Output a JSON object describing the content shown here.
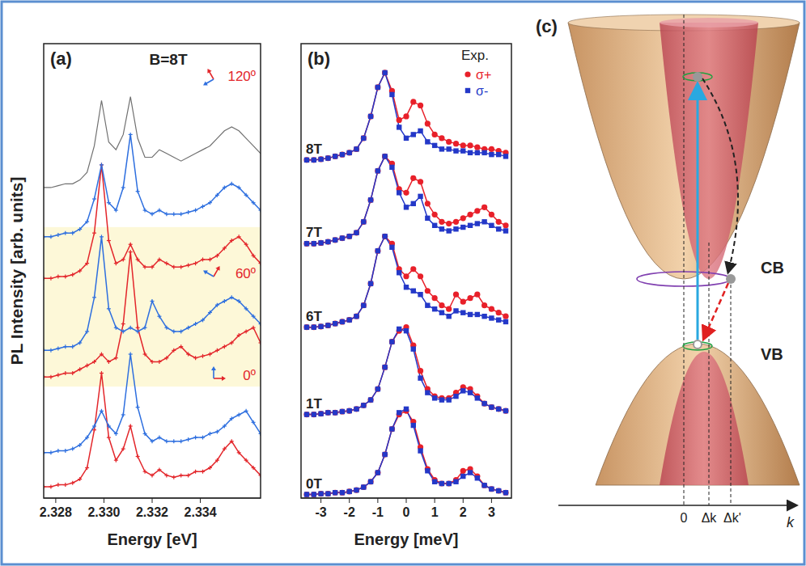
{
  "chart_data": [
    {
      "type": "line",
      "panel": "(a)",
      "annotations": [
        "B=8T"
      ],
      "x_label": "Energy [eV]",
      "y_label": "PL Intensity [arb. units]",
      "x": [
        2.3275,
        2.3278,
        2.3281,
        2.3284,
        2.3287,
        2.329,
        2.3293,
        2.3296,
        2.3299,
        2.3302,
        2.3305,
        2.3308,
        2.3311,
        2.3314,
        2.3317,
        2.332,
        2.3323,
        2.3326,
        2.3329,
        2.3332,
        2.3335,
        2.3338,
        2.3341,
        2.3344,
        2.3347,
        2.335,
        2.3353,
        2.3356,
        2.3359,
        2.3362,
        2.3365
      ],
      "xlim": [
        2.3275,
        2.3365
      ],
      "xticks": [
        {
          "value": 2.328,
          "label": "2.328"
        },
        {
          "value": 2.33,
          "label": "2.330"
        },
        {
          "value": 2.332,
          "label": "2.332"
        },
        {
          "value": 2.334,
          "label": "2.334"
        }
      ],
      "ylim": [
        0,
        12
      ],
      "tick_labels": "x",
      "marker": "plus",
      "groups": [
        {
          "label": "0º",
          "series": [
            {
              "color": "#e3262b",
              "values": [
                0.3,
                0.3,
                0.35,
                0.35,
                0.4,
                0.5,
                0.8,
                1.8,
                3.3,
                1.6,
                1.0,
                1.3,
                1.9,
                1.1,
                0.7,
                0.6,
                0.75,
                0.6,
                0.55,
                0.6,
                0.6,
                0.7,
                0.7,
                0.8,
                1.0,
                1.3,
                1.5,
                1.2,
                1.0,
                0.8,
                0.6
              ]
            },
            {
              "color": "#2e6fdf",
              "values": [
                1.2,
                1.2,
                1.25,
                1.25,
                1.3,
                1.4,
                1.6,
                1.9,
                2.3,
                1.9,
                1.7,
                2.2,
                3.8,
                2.4,
                1.7,
                1.5,
                1.6,
                1.5,
                1.5,
                1.5,
                1.55,
                1.6,
                1.6,
                1.7,
                1.75,
                1.9,
                2.1,
                2.2,
                2.3,
                2.0,
                1.7
              ]
            }
          ]
        },
        {
          "label": "60º",
          "series": [
            {
              "color": "#e3262b",
              "values": [
                3.2,
                3.2,
                3.25,
                3.3,
                3.3,
                3.4,
                3.5,
                3.6,
                3.8,
                3.6,
                3.7,
                4.6,
                6.5,
                4.5,
                3.8,
                3.6,
                3.6,
                3.7,
                3.9,
                4.0,
                3.8,
                3.7,
                3.75,
                3.8,
                3.9,
                4.0,
                4.1,
                4.3,
                4.4,
                4.5,
                4.1
              ]
            },
            {
              "color": "#2e6fdf",
              "values": [
                3.9,
                3.9,
                3.95,
                4.0,
                4.0,
                4.1,
                4.4,
                5.3,
                6.9,
                5.0,
                4.5,
                4.4,
                4.5,
                4.4,
                4.5,
                5.2,
                4.8,
                4.5,
                4.4,
                4.4,
                4.5,
                4.6,
                4.7,
                4.9,
                5.1,
                5.2,
                5.3,
                5.2,
                5.0,
                4.8,
                4.6
              ]
            }
          ]
        },
        {
          "label": "120º",
          "series": [
            {
              "color": "#e3262b",
              "values": [
                5.8,
                5.8,
                5.85,
                5.85,
                5.9,
                6.0,
                6.2,
                7.0,
                8.8,
                6.8,
                6.2,
                6.3,
                6.7,
                6.3,
                6.1,
                6.1,
                6.3,
                6.2,
                6.1,
                6.1,
                6.15,
                6.2,
                6.3,
                6.3,
                6.4,
                6.6,
                6.8,
                6.9,
                6.7,
                6.4,
                6.2
              ]
            },
            {
              "color": "#2e6fdf",
              "values": [
                6.9,
                6.9,
                6.95,
                7.0,
                7.0,
                7.1,
                7.3,
                7.9,
                8.8,
                7.8,
                7.6,
                8.2,
                9.6,
                8.1,
                7.6,
                7.5,
                7.6,
                7.5,
                7.5,
                7.5,
                7.55,
                7.6,
                7.7,
                7.8,
                8.0,
                8.2,
                8.3,
                8.2,
                8.0,
                7.8,
                7.6
              ]
            }
          ]
        }
      ],
      "reference": {
        "color": "#707070",
        "marker": "none",
        "values": [
          8.2,
          8.2,
          8.25,
          8.3,
          8.3,
          8.4,
          8.6,
          9.3,
          10.5,
          9.4,
          9.2,
          9.6,
          10.6,
          9.5,
          9.0,
          9.0,
          9.2,
          9.1,
          9.0,
          8.9,
          9.0,
          9.1,
          9.2,
          9.3,
          9.5,
          9.7,
          9.8,
          9.7,
          9.5,
          9.3,
          9.1
        ]
      }
    },
    {
      "type": "line",
      "panel": "(b)",
      "x_label": "Energy [meV]",
      "legend": "upper right",
      "legend_title": "Exp.",
      "x": [
        -3.5,
        -3.25,
        -3,
        -2.75,
        -2.5,
        -2.25,
        -2,
        -1.75,
        -1.5,
        -1.25,
        -1,
        -0.75,
        -0.5,
        -0.25,
        0,
        0.25,
        0.5,
        0.75,
        1,
        1.25,
        1.5,
        1.75,
        2,
        2.25,
        2.5,
        2.75,
        3,
        3.25,
        3.5
      ],
      "xlim": [
        -3.7,
        3.7
      ],
      "xticks": [
        -3,
        -2,
        -1,
        0,
        1,
        2,
        3
      ],
      "ylim": [
        0,
        12.5
      ],
      "tick_labels": "x",
      "groups": [
        {
          "label": "0T",
          "series": [
            {
              "name": "σ+",
              "color": "#e8202a",
              "marker": "circle",
              "values": [
                0.1,
                0.1,
                0.12,
                0.12,
                0.15,
                0.15,
                0.18,
                0.22,
                0.3,
                0.45,
                0.7,
                1.2,
                1.9,
                2.3,
                2.4,
                2.1,
                1.4,
                0.8,
                0.5,
                0.4,
                0.4,
                0.5,
                0.75,
                0.8,
                0.6,
                0.35,
                0.25,
                0.2,
                0.15
              ]
            },
            {
              "name": "σ-",
              "color": "#2438c8",
              "marker": "square",
              "values": [
                0.1,
                0.1,
                0.12,
                0.12,
                0.15,
                0.15,
                0.18,
                0.22,
                0.3,
                0.45,
                0.7,
                1.2,
                1.9,
                2.35,
                2.45,
                2.0,
                1.3,
                0.75,
                0.45,
                0.4,
                0.4,
                0.45,
                0.6,
                0.7,
                0.55,
                0.35,
                0.25,
                0.2,
                0.15
              ]
            }
          ]
        },
        {
          "label": "1T",
          "series": [
            {
              "name": "σ+",
              "color": "#e8202a",
              "marker": "circle",
              "values": [
                2.3,
                2.3,
                2.32,
                2.35,
                2.35,
                2.38,
                2.4,
                2.45,
                2.55,
                2.7,
                3.0,
                3.6,
                4.3,
                4.6,
                4.7,
                4.2,
                3.5,
                3.0,
                2.8,
                2.75,
                2.75,
                2.9,
                3.05,
                3.0,
                2.8,
                2.6,
                2.5,
                2.45,
                2.4
              ]
            },
            {
              "name": "σ-",
              "color": "#2438c8",
              "marker": "square",
              "values": [
                2.3,
                2.3,
                2.32,
                2.35,
                2.35,
                2.38,
                2.4,
                2.45,
                2.55,
                2.7,
                3.0,
                3.6,
                4.3,
                4.65,
                4.6,
                4.1,
                3.3,
                2.9,
                2.75,
                2.7,
                2.7,
                2.8,
                2.95,
                2.9,
                2.75,
                2.6,
                2.5,
                2.45,
                2.4
              ]
            }
          ]
        },
        {
          "label": "6T",
          "series": [
            {
              "name": "σ+",
              "color": "#e8202a",
              "marker": "circle",
              "values": [
                4.7,
                4.7,
                4.72,
                4.75,
                4.8,
                4.85,
                4.9,
                5.0,
                5.3,
                5.9,
                6.8,
                7.2,
                7.0,
                6.3,
                6.1,
                6.3,
                6.1,
                5.7,
                5.5,
                5.3,
                5.2,
                5.6,
                5.4,
                5.5,
                5.6,
                5.3,
                5.2,
                5.1,
                5.0
              ]
            },
            {
              "name": "σ-",
              "color": "#2438c8",
              "marker": "square",
              "values": [
                4.7,
                4.7,
                4.72,
                4.75,
                4.8,
                4.85,
                4.9,
                5.0,
                5.3,
                5.9,
                6.8,
                7.2,
                6.9,
                6.2,
                5.8,
                5.7,
                5.6,
                5.3,
                5.2,
                5.1,
                5.0,
                5.15,
                5.1,
                5.05,
                5.05,
                5.0,
                4.95,
                4.9,
                4.85
              ]
            }
          ]
        },
        {
          "label": "7T",
          "series": [
            {
              "name": "σ+",
              "color": "#e8202a",
              "marker": "circle",
              "values": [
                7.0,
                7.0,
                7.02,
                7.05,
                7.1,
                7.15,
                7.2,
                7.3,
                7.6,
                8.2,
                9.0,
                9.4,
                9.2,
                8.5,
                8.4,
                8.8,
                8.7,
                8.1,
                7.8,
                7.6,
                7.55,
                7.6,
                7.7,
                7.8,
                7.9,
                8.0,
                7.8,
                7.6,
                7.5
              ]
            },
            {
              "name": "σ-",
              "color": "#2438c8",
              "marker": "square",
              "values": [
                7.0,
                7.0,
                7.02,
                7.05,
                7.1,
                7.15,
                7.2,
                7.3,
                7.6,
                8.2,
                9.0,
                9.4,
                9.1,
                8.4,
                8.0,
                8.1,
                8.3,
                7.7,
                7.5,
                7.4,
                7.35,
                7.4,
                7.45,
                7.5,
                7.55,
                7.6,
                7.5,
                7.4,
                7.35
              ]
            }
          ]
        },
        {
          "label": "8T",
          "series": [
            {
              "name": "σ+",
              "color": "#e8202a",
              "marker": "circle",
              "values": [
                9.3,
                9.3,
                9.32,
                9.35,
                9.4,
                9.45,
                9.5,
                9.6,
                9.9,
                10.5,
                11.3,
                11.7,
                11.2,
                10.4,
                10.5,
                10.9,
                10.8,
                10.3,
                10.0,
                9.9,
                9.8,
                9.75,
                9.7,
                9.7,
                9.65,
                9.6,
                9.6,
                9.55,
                9.5
              ]
            },
            {
              "name": "σ-",
              "color": "#2438c8",
              "marker": "square",
              "values": [
                9.3,
                9.3,
                9.32,
                9.35,
                9.4,
                9.45,
                9.5,
                9.6,
                9.9,
                10.5,
                11.3,
                11.7,
                11.1,
                10.2,
                9.9,
                10.0,
                10.1,
                9.8,
                9.7,
                9.6,
                9.6,
                9.55,
                9.55,
                9.5,
                9.5,
                9.5,
                9.45,
                9.45,
                9.4
              ]
            }
          ]
        }
      ]
    }
  ],
  "diagram": {
    "panel": "(c)",
    "bands": {
      "conduction": "CB",
      "valence": "VB"
    },
    "axis_label": "k",
    "axis_ticks": [
      "0",
      "Δk",
      "Δk'"
    ]
  }
}
